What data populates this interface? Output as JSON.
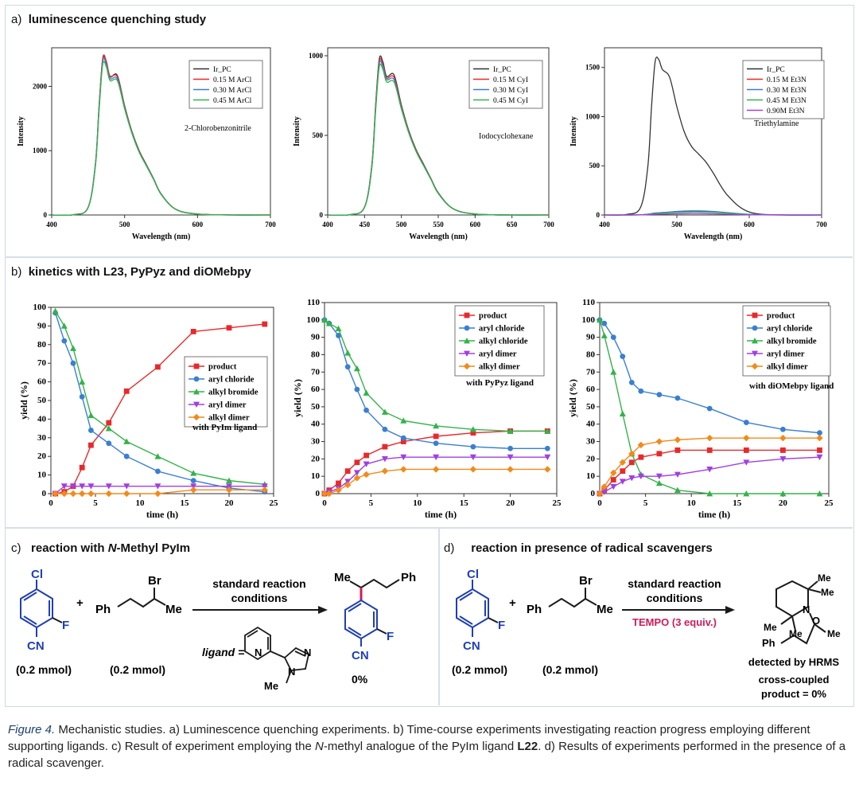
{
  "panels": {
    "a": {
      "letter": "a)",
      "title": "luminescence quenching study"
    },
    "b": {
      "letter": "b)",
      "title": "kinetics with L23, PyPyz and diOMebpy"
    },
    "c": {
      "letter": "c)",
      "title_prefix": "reaction with ",
      "title_italic": "N",
      "title_suffix": "-Methyl PyIm"
    },
    "d": {
      "letter": "d)",
      "title": "reaction in presence of radical scavengers"
    }
  },
  "colors": {
    "black": "#333333",
    "red": "#e8292b",
    "blue": "#3a7fd1",
    "green": "#34b24a",
    "purple": "#a040e0",
    "orange": "#f28a1a",
    "chem_blue": "#1f3fb5",
    "tempo": "#d01c5a"
  },
  "chart_data": [
    {
      "type": "line",
      "id": "lum1",
      "xlabel": "Wavelength (nm)",
      "ylabel": "Intensity",
      "xlim": [
        400,
        700
      ],
      "ylim": [
        0,
        2600
      ],
      "xticks": [
        400,
        500,
        600,
        700
      ],
      "yticks": [
        0,
        1000,
        2000
      ],
      "annotation": "2-Chlorobenzonitrile",
      "legend_position": "top-right",
      "x": [
        400,
        430,
        450,
        460,
        465,
        470,
        475,
        480,
        490,
        500,
        510,
        520,
        530,
        540,
        550,
        570,
        600,
        650,
        700
      ],
      "series": [
        {
          "name": "Ir_PC",
          "color": "black",
          "values": [
            0,
            5,
            120,
            800,
            1700,
            2420,
            2380,
            2150,
            2170,
            1700,
            1300,
            1000,
            780,
            560,
            330,
            90,
            15,
            0,
            0
          ]
        },
        {
          "name": "0.15 M ArCl",
          "color": "red",
          "values": [
            0,
            5,
            120,
            790,
            1690,
            2440,
            2390,
            2160,
            2150,
            1690,
            1290,
            990,
            770,
            555,
            325,
            90,
            15,
            0,
            0
          ]
        },
        {
          "name": "0.30 M ArCl",
          "color": "blue",
          "values": [
            0,
            5,
            118,
            780,
            1660,
            2390,
            2340,
            2120,
            2120,
            1670,
            1280,
            980,
            765,
            550,
            322,
            88,
            14,
            0,
            0
          ]
        },
        {
          "name": "0.45 M ArCl",
          "color": "green",
          "values": [
            0,
            5,
            115,
            760,
            1620,
            2340,
            2300,
            2090,
            2090,
            1650,
            1270,
            975,
            760,
            545,
            320,
            88,
            14,
            0,
            0
          ]
        }
      ]
    },
    {
      "type": "line",
      "id": "lum2",
      "xlabel": "Wavelength (nm)",
      "ylabel": "Intensity",
      "xlim": [
        400,
        700
      ],
      "ylim": [
        0,
        1050
      ],
      "xticks": [
        400,
        450,
        500,
        550,
        600,
        650,
        700
      ],
      "yticks": [
        0,
        500,
        1000
      ],
      "annotation": "Iodocyclohexane",
      "legend_position": "top-right",
      "x": [
        400,
        430,
        450,
        460,
        465,
        470,
        475,
        480,
        490,
        500,
        510,
        520,
        530,
        540,
        550,
        570,
        600,
        650,
        700
      ],
      "series": [
        {
          "name": "Ir_PC",
          "color": "black",
          "values": [
            0,
            2,
            50,
            320,
            690,
            980,
            960,
            870,
            880,
            690,
            530,
            410,
            320,
            230,
            140,
            40,
            6,
            0,
            0
          ]
        },
        {
          "name": "0.15 M CyI",
          "color": "red",
          "values": [
            0,
            2,
            49,
            315,
            680,
            965,
            945,
            860,
            865,
            680,
            525,
            405,
            315,
            228,
            138,
            40,
            6,
            0,
            0
          ]
        },
        {
          "name": "0.30 M CyI",
          "color": "blue",
          "values": [
            0,
            2,
            48,
            308,
            665,
            950,
            930,
            850,
            850,
            672,
            520,
            400,
            312,
            226,
            136,
            39,
            6,
            0,
            0
          ]
        },
        {
          "name": "0.45 M CyI",
          "color": "green",
          "values": [
            0,
            2,
            47,
            300,
            650,
            930,
            912,
            835,
            835,
            665,
            515,
            398,
            310,
            224,
            135,
            39,
            6,
            0,
            0
          ]
        }
      ]
    },
    {
      "type": "line",
      "id": "lum3",
      "xlabel": "Wavelength (nm)",
      "ylabel": "Intensity",
      "xlim": [
        400,
        700
      ],
      "ylim": [
        0,
        1700
      ],
      "xticks": [
        400,
        500,
        600,
        700
      ],
      "yticks": [
        0,
        500,
        1000,
        1500
      ],
      "annotation": "Triethylamine",
      "legend_position": "top-right",
      "x": [
        400,
        430,
        450,
        460,
        465,
        470,
        475,
        480,
        490,
        500,
        510,
        520,
        530,
        540,
        550,
        570,
        600,
        650,
        700
      ],
      "series": [
        {
          "name": "Ir_PC",
          "color": "black",
          "values": [
            0,
            5,
            80,
            500,
            1100,
            1560,
            1580,
            1480,
            1400,
            1100,
            850,
            700,
            620,
            540,
            430,
            200,
            30,
            0,
            0
          ]
        },
        {
          "name": "0.15 M Et3N",
          "color": "red",
          "values": [
            0,
            0,
            2,
            8,
            14,
            20,
            22,
            24,
            28,
            33,
            36,
            38,
            38,
            37,
            34,
            22,
            6,
            0,
            0
          ]
        },
        {
          "name": "0.30 M Et3N",
          "color": "blue",
          "values": [
            0,
            0,
            2,
            8,
            14,
            20,
            22,
            25,
            30,
            36,
            40,
            42,
            42,
            40,
            36,
            24,
            7,
            0,
            0
          ]
        },
        {
          "name": "0.45 M Et3N",
          "color": "green",
          "values": [
            0,
            0,
            1,
            6,
            10,
            14,
            16,
            18,
            22,
            26,
            28,
            30,
            30,
            29,
            26,
            18,
            5,
            0,
            0
          ]
        },
        {
          "name": "0.90M Et3N",
          "color": "purple",
          "values": [
            0,
            0,
            1,
            3,
            5,
            7,
            8,
            9,
            10,
            12,
            13,
            14,
            14,
            13,
            12,
            8,
            2,
            0,
            0
          ]
        }
      ]
    },
    {
      "type": "line",
      "id": "kin1",
      "xlabel": "time (h)",
      "ylabel": "yield (%)",
      "xlim": [
        0,
        25
      ],
      "ylim": [
        0,
        100
      ],
      "xticks": [
        0,
        5,
        10,
        15,
        20,
        25
      ],
      "yticks": [
        0,
        10,
        20,
        30,
        40,
        50,
        60,
        70,
        80,
        90,
        100
      ],
      "annotation": "with PyIm ligand",
      "legend_position": "center-right",
      "x": [
        0.5,
        1.5,
        2.5,
        3.5,
        4.5,
        6.5,
        8.5,
        12,
        16,
        20,
        24
      ],
      "series": [
        {
          "name": "product",
          "color": "red",
          "values": [
            0,
            1,
            4,
            14,
            26,
            38,
            55,
            68,
            87,
            89,
            91
          ]
        },
        {
          "name": "aryl chloride",
          "color": "blue",
          "values": [
            97,
            82,
            70,
            52,
            34,
            27,
            20,
            12,
            7,
            3,
            1
          ]
        },
        {
          "name": "alkyl bromide",
          "color": "green",
          "values": [
            98,
            90,
            78,
            60,
            42,
            35,
            28,
            20,
            11,
            7,
            5
          ]
        },
        {
          "name": "aryl dimer",
          "color": "purple",
          "values": [
            0,
            4,
            4,
            4,
            4,
            4,
            4,
            4,
            4,
            4,
            4
          ]
        },
        {
          "name": "alkyl dimer",
          "color": "orange",
          "values": [
            0,
            0,
            0,
            0,
            0,
            0,
            0,
            0,
            2,
            2,
            2
          ]
        }
      ]
    },
    {
      "type": "line",
      "id": "kin2",
      "xlabel": "time (h)",
      "ylabel": "yield (%)",
      "xlim": [
        0,
        25
      ],
      "ylim": [
        0,
        110
      ],
      "xticks": [
        0,
        5,
        10,
        15,
        20,
        25
      ],
      "yticks": [
        0,
        10,
        20,
        30,
        40,
        50,
        60,
        70,
        80,
        90,
        100,
        110
      ],
      "annotation": "with PyPyz ligand",
      "legend_position": "top-right",
      "x": [
        0,
        0.5,
        1.5,
        2.5,
        3.5,
        4.5,
        6.5,
        8.5,
        12,
        16,
        20,
        24
      ],
      "series": [
        {
          "name": "product",
          "color": "red",
          "values": [
            0,
            2,
            6,
            13,
            18,
            22,
            27,
            30,
            33,
            35,
            36,
            36
          ]
        },
        {
          "name": "aryl chloride",
          "color": "blue",
          "values": [
            100,
            98,
            91,
            73,
            60,
            48,
            37,
            32,
            29,
            27,
            26,
            26
          ]
        },
        {
          "name": "alkyl chloride",
          "color": "green",
          "values": [
            100,
            98,
            95,
            81,
            72,
            58,
            47,
            42,
            39,
            37,
            36,
            36
          ]
        },
        {
          "name": "aryl dimer",
          "color": "purple",
          "values": [
            0,
            1,
            3,
            7,
            12,
            17,
            20,
            21,
            21,
            21,
            21,
            21
          ]
        },
        {
          "name": "alkyl dimer",
          "color": "orange",
          "values": [
            0,
            0,
            2,
            5,
            9,
            11,
            13,
            14,
            14,
            14,
            14,
            14
          ]
        }
      ]
    },
    {
      "type": "line",
      "id": "kin3",
      "xlabel": "time (h)",
      "ylabel": "yield (%)",
      "xlim": [
        0,
        25
      ],
      "ylim": [
        0,
        110
      ],
      "xticks": [
        0,
        5,
        10,
        15,
        20,
        25
      ],
      "yticks": [
        0,
        10,
        20,
        30,
        40,
        50,
        60,
        70,
        80,
        90,
        100,
        110
      ],
      "annotation": "with diOMebpy ligand",
      "legend_position": "top-right",
      "x": [
        0,
        0.5,
        1.5,
        2.5,
        3.5,
        4.5,
        6.5,
        8.5,
        12,
        16,
        20,
        24
      ],
      "series": [
        {
          "name": "product",
          "color": "red",
          "values": [
            0,
            2,
            8,
            13,
            18,
            21,
            23,
            25,
            25,
            25,
            25,
            25
          ]
        },
        {
          "name": "aryl chloride",
          "color": "blue",
          "values": [
            100,
            98,
            90,
            79,
            64,
            59,
            57,
            55,
            49,
            41,
            37,
            35
          ]
        },
        {
          "name": "alkyl bromide",
          "color": "green",
          "values": [
            100,
            91,
            70,
            46,
            23,
            11,
            6,
            2,
            0,
            0,
            0,
            0
          ]
        },
        {
          "name": "aryl dimer",
          "color": "purple",
          "values": [
            0,
            1,
            4,
            7,
            9,
            10,
            10,
            11,
            14,
            18,
            20,
            21
          ]
        },
        {
          "name": "alkyl dimer",
          "color": "orange",
          "values": [
            0,
            4,
            12,
            18,
            23,
            28,
            30,
            31,
            32,
            32,
            32,
            32
          ]
        }
      ]
    }
  ],
  "scheme_c": {
    "reactant1_amount": "(0.2 mmol)",
    "reactant2_amount": "(0.2 mmol)",
    "plus": "+",
    "arrow_top_line1": "standard reaction",
    "arrow_top_line2": "conditions",
    "ligand_label": "ligand =",
    "product_yield": "0%",
    "atom_Cl": "Cl",
    "atom_F": "F",
    "atom_CN": "CN",
    "atom_Br": "Br",
    "atom_Ph": "Ph",
    "atom_Me": "Me",
    "atom_N": "N"
  },
  "scheme_d": {
    "reactant1_amount": "(0.2 mmol)",
    "reactant2_amount": "(0.2 mmol)",
    "plus": "+",
    "arrow_top_line1": "standard reaction",
    "arrow_top_line2": "conditions",
    "arrow_bottom": "TEMPO (3 equiv.)",
    "detected": "detected by HRMS",
    "result_line1": "cross-coupled",
    "result_line2": "product = 0%",
    "atom_O": "O"
  },
  "caption": {
    "label": "Figure 4.",
    "text": " Mechanistic studies. a) Luminescence quenching experiments. b) Time-course experiments investigating reaction progress employing different supporting ligands. c) Result of experiment employing the ",
    "italic_n": "N",
    "text2": "-methyl analogue of the PyIm ligand ",
    "bold": "L22",
    "text3": ". d) Results of experiments performed in the presence of a radical scavenger."
  }
}
